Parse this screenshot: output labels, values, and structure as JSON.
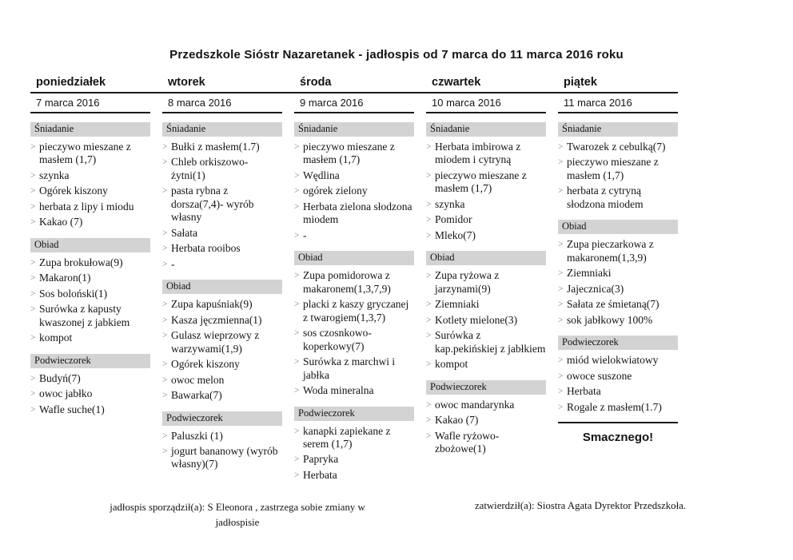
{
  "title": "Przedszkole Sióstr Nazaretanek  -  jadłospis od 7 marca do 11 marca 2016 roku",
  "days": [
    {
      "name": "poniedziałek",
      "date": "7 marca 2016",
      "sections": [
        {
          "label": "Śniadanie",
          "items": [
            "pieczywo mieszane z masłem (1,7)",
            "szynka",
            "Ogórek kiszony",
            "herbata z lipy i miodu",
            "Kakao (7)"
          ]
        },
        {
          "label": "Obiad",
          "items": [
            "Zupa brokułowa(9)",
            "Makaron(1)",
            "Sos boloński(1)",
            "Surówka z kapusty kwaszonej z jabkiem",
            "kompot"
          ]
        },
        {
          "label": "Podwieczorek",
          "items": [
            "Budyń(7)",
            "owoc jabłko",
            "Wafle suche(1)"
          ]
        }
      ]
    },
    {
      "name": "wtorek",
      "date": "8 marca 2016",
      "sections": [
        {
          "label": "Śniadanie",
          "items": [
            "Bułki z masłem(1.7)",
            "Chleb orkiszowo-żytni(1)",
            "pasta rybna z dorsza(7,4)- wyrób własny",
            "Sałata",
            "Herbata rooibos",
            "-"
          ]
        },
        {
          "label": "Obiad",
          "items": [
            "Zupa kapuśniak(9)",
            "Kasza jęczmienna(1)",
            "Gulasz wieprzowy z warzywami(1,9)",
            "Ogórek kiszony",
            "owoc melon",
            "Bawarka(7)"
          ]
        },
        {
          "label": "Podwieczorek",
          "items": [
            "Paluszki (1)",
            "jogurt bananowy (wyrób własny)(7)"
          ]
        }
      ]
    },
    {
      "name": "środa",
      "date": "9 marca 2016",
      "sections": [
        {
          "label": "Śniadanie",
          "items": [
            "pieczywo mieszane z masłem (1,7)",
            "Wędlina",
            "ogórek zielony",
            "Herbata zielona słodzona miodem",
            "-"
          ]
        },
        {
          "label": "Obiad",
          "items": [
            "Zupa pomidorowa z makaronem(1,3,7,9)",
            "placki z kaszy gryczanej z twarogiem(1,3,7)",
            "sos czosnkowo-koperkowy(7)",
            "Surówka z marchwi i jabłka",
            "Woda mineralna"
          ]
        },
        {
          "label": "Podwieczorek",
          "items": [
            "kanapki zapiekane z serem (1,7)",
            "Papryka",
            "Herbata"
          ]
        }
      ]
    },
    {
      "name": "czwartek",
      "date": "10 marca 2016",
      "sections": [
        {
          "label": "Śniadanie",
          "items": [
            "Herbata imbirowa z miodem i cytryną",
            "pieczywo mieszane z masłem (1,7)",
            "szynka",
            "Pomidor",
            "Mleko(7)"
          ]
        },
        {
          "label": "Obiad",
          "items": [
            "Zupa ryżowa z jarzynami(9)",
            "Ziemniaki",
            "Kotlety mielone(3)",
            "Surówka z kap.pekińskiej z jabłkiem",
            "kompot"
          ]
        },
        {
          "label": "Podwieczorek",
          "items": [
            "owoc mandarynka",
            "Kakao (7)",
            "Wafle ryżowo-zbożowe(1)"
          ]
        }
      ]
    },
    {
      "name": "piątek",
      "date": "11 marca 2016",
      "sections": [
        {
          "label": "Śniadanie",
          "items": [
            "Twarozek z cebulką(7)",
            "pieczywo mieszane z masłem (1,7)",
            "herbata z cytryną słodzona miodem"
          ]
        },
        {
          "label": "Obiad",
          "items": [
            "Zupa pieczarkowa z makaronem(1,3,9)",
            "Ziemniaki",
            "Jajecznica(3)",
            "Sałata ze śmietaną(7)",
            "sok jabłkowy 100%"
          ]
        },
        {
          "label": "Podwieczorek",
          "items": [
            "miód wielokwiatowy",
            "owoce suszone",
            "Herbata",
            "Rogale z masłem(1.7)"
          ]
        }
      ]
    }
  ],
  "closing": "Smacznego!",
  "footer": {
    "left": "jadłospis sporządził(a):  S Eleonora , zastrzega sobie zmiany w jadłospisie",
    "right": "zatwierdził(a):  Siostra Agata Dyrektor Przedszkoła."
  },
  "colors": {
    "section_bar_bg": "#d3d3d3",
    "bullet_gray": "#7d7d7d",
    "rule_black": "#1a1a1a"
  }
}
